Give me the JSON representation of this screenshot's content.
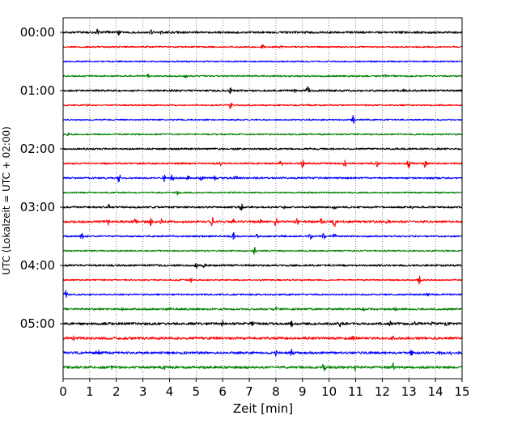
{
  "chart_data": {
    "type": "line",
    "xlabel": "Zeit  [min]",
    "ylabel": "UTC (Lokalzeit = UTC + 02:00)",
    "xlim": [
      0,
      15
    ],
    "x_ticks": [
      "0",
      "1",
      "2",
      "3",
      "4",
      "5",
      "6",
      "7",
      "8",
      "9",
      "10",
      "11",
      "12",
      "13",
      "14",
      "15"
    ],
    "y_tick_labels": [
      "00:00",
      "01:00",
      "02:00",
      "03:00",
      "04:00",
      "05:00"
    ],
    "grid": "vertical dotted lines at each minute",
    "colors": [
      "#000000",
      "#ff0000",
      "#0000ff",
      "#008000"
    ],
    "trace_interval_min": 15,
    "traces": [
      {
        "start": "00:00",
        "color": "#000000",
        "noise": 1.3,
        "events": [
          [
            1.3,
            3.5
          ],
          [
            1.7,
            3
          ],
          [
            2.1,
            2.5
          ],
          [
            3.3,
            2.2
          ],
          [
            3.7,
            1.6
          ]
        ]
      },
      {
        "start": "00:15",
        "color": "#ff0000",
        "noise": 0.9,
        "events": [
          [
            7.5,
            2.5
          ],
          [
            8.2,
            1.2
          ]
        ]
      },
      {
        "start": "00:30",
        "color": "#0000ff",
        "noise": 0.9,
        "events": []
      },
      {
        "start": "00:45",
        "color": "#008000",
        "noise": 1.0,
        "events": [
          [
            3.2,
            1.8
          ],
          [
            4.6,
            1.8
          ],
          [
            12.1,
            1.4
          ]
        ]
      },
      {
        "start": "01:00",
        "color": "#000000",
        "noise": 1.2,
        "events": [
          [
            6.3,
            3
          ],
          [
            9.2,
            5
          ],
          [
            8.7,
            1.4
          ],
          [
            12.8,
            1.2
          ]
        ]
      },
      {
        "start": "01:15",
        "color": "#ff0000",
        "noise": 0.9,
        "events": [
          [
            0.9,
            1.2
          ],
          [
            6.3,
            5
          ]
        ]
      },
      {
        "start": "01:30",
        "color": "#0000ff",
        "noise": 0.9,
        "events": [
          [
            10.9,
            5
          ]
        ]
      },
      {
        "start": "01:45",
        "color": "#008000",
        "noise": 0.9,
        "events": [
          [
            0.2,
            1.8
          ]
        ]
      },
      {
        "start": "02:00",
        "color": "#000000",
        "noise": 1.1,
        "events": []
      },
      {
        "start": "02:15",
        "color": "#ff0000",
        "noise": 1.1,
        "events": [
          [
            5.9,
            2.5
          ],
          [
            8.2,
            6
          ],
          [
            9.0,
            5
          ],
          [
            10.6,
            4
          ],
          [
            11.8,
            3.5
          ],
          [
            13.0,
            6
          ],
          [
            13.6,
            6
          ]
        ]
      },
      {
        "start": "02:30",
        "color": "#0000ff",
        "noise": 1.1,
        "events": [
          [
            2.1,
            6
          ],
          [
            3.8,
            4
          ],
          [
            4.1,
            5
          ],
          [
            4.7,
            2
          ],
          [
            5.2,
            3
          ],
          [
            5.7,
            3.5
          ],
          [
            6.5,
            3
          ]
        ]
      },
      {
        "start": "02:45",
        "color": "#008000",
        "noise": 0.9,
        "events": [
          [
            4.3,
            3
          ]
        ]
      },
      {
        "start": "03:00",
        "color": "#000000",
        "noise": 1.1,
        "events": [
          [
            1.7,
            3
          ],
          [
            6.7,
            5
          ],
          [
            8.3,
            1.8
          ],
          [
            10.2,
            1.8
          ],
          [
            13.1,
            1.5
          ]
        ]
      },
      {
        "start": "03:15",
        "color": "#ff0000",
        "noise": 1.4,
        "events": [
          [
            1.7,
            4
          ],
          [
            2.7,
            4
          ],
          [
            3.3,
            4.5
          ],
          [
            3.7,
            3
          ],
          [
            5.6,
            5
          ],
          [
            6.4,
            4
          ],
          [
            7.4,
            3
          ],
          [
            8.0,
            5
          ],
          [
            8.8,
            3
          ],
          [
            9.7,
            3.5
          ],
          [
            10.2,
            5
          ],
          [
            12.2,
            1.5
          ]
        ]
      },
      {
        "start": "03:30",
        "color": "#0000ff",
        "noise": 1.0,
        "events": [
          [
            0.7,
            4
          ],
          [
            6.4,
            5
          ],
          [
            7.3,
            2
          ],
          [
            8.3,
            2
          ],
          [
            9.3,
            3
          ],
          [
            9.8,
            4
          ],
          [
            10.2,
            3
          ]
        ]
      },
      {
        "start": "03:45",
        "color": "#008000",
        "noise": 0.9,
        "events": [
          [
            7.2,
            5
          ]
        ]
      },
      {
        "start": "04:00",
        "color": "#000000",
        "noise": 1.2,
        "events": [
          [
            5.0,
            3
          ],
          [
            5.3,
            2
          ]
        ]
      },
      {
        "start": "04:15",
        "color": "#ff0000",
        "noise": 0.9,
        "events": [
          [
            4.8,
            3
          ],
          [
            13.4,
            6
          ]
        ]
      },
      {
        "start": "04:30",
        "color": "#0000ff",
        "noise": 1.0,
        "events": [
          [
            0.1,
            5
          ],
          [
            13.7,
            1.5
          ]
        ]
      },
      {
        "start": "04:45",
        "color": "#008000",
        "noise": 1.2,
        "events": [
          [
            2.2,
            2
          ],
          [
            4.0,
            1.5
          ],
          [
            8.0,
            2.5
          ],
          [
            11.3,
            1.5
          ],
          [
            12.5,
            1.5
          ]
        ]
      },
      {
        "start": "05:00",
        "color": "#000000",
        "noise": 1.5,
        "events": [
          [
            6.0,
            4
          ],
          [
            7.1,
            3
          ],
          [
            8.6,
            3.5
          ],
          [
            10.4,
            3
          ],
          [
            12.3,
            2
          ],
          [
            13.2,
            1.5
          ],
          [
            13.9,
            2.5
          ],
          [
            14.4,
            2.5
          ]
        ]
      },
      {
        "start": "05:15",
        "color": "#ff0000",
        "noise": 1.5,
        "events": [
          [
            0.4,
            2
          ],
          [
            5.6,
            1.5
          ],
          [
            10.9,
            2
          ],
          [
            12.4,
            2
          ]
        ]
      },
      {
        "start": "05:30",
        "color": "#0000ff",
        "noise": 1.4,
        "events": [
          [
            1.3,
            5
          ],
          [
            8.0,
            3
          ],
          [
            8.6,
            4
          ],
          [
            13.1,
            2
          ],
          [
            14.2,
            2
          ],
          [
            14.6,
            2
          ]
        ]
      },
      {
        "start": "05:45",
        "color": "#008000",
        "noise": 1.5,
        "events": [
          [
            9.8,
            6
          ],
          [
            11.0,
            4
          ],
          [
            12.4,
            5
          ],
          [
            1.8,
            1.5
          ],
          [
            3.8,
            1.5
          ]
        ]
      }
    ]
  }
}
